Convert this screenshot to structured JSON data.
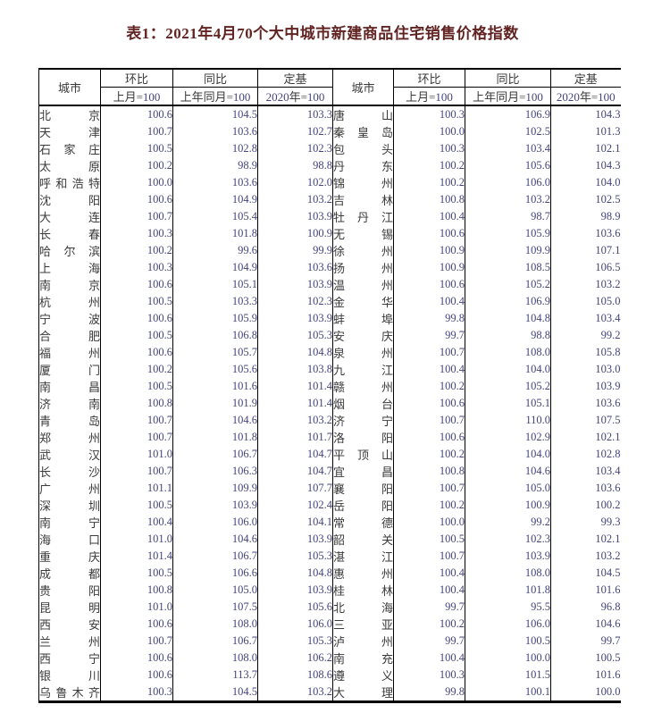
{
  "title": "表1：2021年4月70个大中城市新建商品住宅销售价格指数",
  "header": {
    "city": "城市",
    "mom": "环比",
    "mom_base": "上月=100",
    "yoy": "同比",
    "yoy_base": "上年同月=100",
    "fixed": "定基",
    "fixed_base": "2020年=100"
  },
  "left_rows": [
    {
      "city": "北京",
      "values": [
        "100.6",
        "104.5",
        "103.3"
      ]
    },
    {
      "city": "天津",
      "values": [
        "100.7",
        "103.6",
        "102.7"
      ]
    },
    {
      "city": "石家庄",
      "values": [
        "100.5",
        "102.8",
        "102.3"
      ]
    },
    {
      "city": "太原",
      "values": [
        "100.2",
        "98.9",
        "98.8"
      ]
    },
    {
      "city": "呼和浩特",
      "values": [
        "100.0",
        "103.6",
        "102.0"
      ]
    },
    {
      "city": "沈阳",
      "values": [
        "100.6",
        "104.9",
        "103.2"
      ]
    },
    {
      "city": "大连",
      "values": [
        "100.7",
        "105.4",
        "103.9"
      ]
    },
    {
      "city": "长春",
      "values": [
        "100.3",
        "101.8",
        "100.9"
      ]
    },
    {
      "city": "哈尔滨",
      "values": [
        "100.2",
        "99.6",
        "99.9"
      ]
    },
    {
      "city": "上海",
      "values": [
        "100.3",
        "104.9",
        "103.6"
      ]
    },
    {
      "city": "南京",
      "values": [
        "100.6",
        "105.1",
        "103.9"
      ]
    },
    {
      "city": "杭州",
      "values": [
        "100.5",
        "103.3",
        "102.3"
      ]
    },
    {
      "city": "宁波",
      "values": [
        "100.6",
        "105.9",
        "103.9"
      ]
    },
    {
      "city": "合肥",
      "values": [
        "100.5",
        "106.8",
        "105.3"
      ]
    },
    {
      "city": "福州",
      "values": [
        "100.6",
        "105.7",
        "104.8"
      ]
    },
    {
      "city": "厦门",
      "values": [
        "100.2",
        "105.6",
        "103.8"
      ]
    },
    {
      "city": "南昌",
      "values": [
        "100.5",
        "101.6",
        "101.4"
      ]
    },
    {
      "city": "济南",
      "values": [
        "100.8",
        "101.9",
        "101.4"
      ]
    },
    {
      "city": "青岛",
      "values": [
        "100.7",
        "104.6",
        "103.2"
      ]
    },
    {
      "city": "郑州",
      "values": [
        "100.7",
        "101.8",
        "101.7"
      ]
    },
    {
      "city": "武汉",
      "values": [
        "101.0",
        "106.7",
        "104.7"
      ]
    },
    {
      "city": "长沙",
      "values": [
        "100.7",
        "106.3",
        "104.7"
      ]
    },
    {
      "city": "广州",
      "values": [
        "101.1",
        "109.9",
        "107.7"
      ]
    },
    {
      "city": "深圳",
      "values": [
        "100.5",
        "103.9",
        "102.4"
      ]
    },
    {
      "city": "南宁",
      "values": [
        "100.4",
        "106.0",
        "104.1"
      ]
    },
    {
      "city": "海口",
      "values": [
        "101.0",
        "104.6",
        "103.9"
      ]
    },
    {
      "city": "重庆",
      "values": [
        "101.4",
        "106.7",
        "105.3"
      ]
    },
    {
      "city": "成都",
      "values": [
        "100.5",
        "106.6",
        "104.8"
      ]
    },
    {
      "city": "贵阳",
      "values": [
        "100.8",
        "105.0",
        "103.9"
      ]
    },
    {
      "city": "昆明",
      "values": [
        "101.0",
        "107.5",
        "105.6"
      ]
    },
    {
      "city": "西安",
      "values": [
        "100.6",
        "108.0",
        "106.0"
      ]
    },
    {
      "city": "兰州",
      "values": [
        "100.7",
        "106.7",
        "105.3"
      ]
    },
    {
      "city": "西宁",
      "values": [
        "100.6",
        "108.0",
        "106.2"
      ]
    },
    {
      "city": "银川",
      "values": [
        "100.6",
        "113.7",
        "108.6"
      ]
    },
    {
      "city": "乌鲁木齐",
      "values": [
        "100.3",
        "104.5",
        "103.2"
      ]
    }
  ],
  "right_rows": [
    {
      "city": "唐山",
      "values": [
        "100.3",
        "106.9",
        "104.3"
      ]
    },
    {
      "city": "秦皇岛",
      "values": [
        "100.0",
        "102.5",
        "101.3"
      ]
    },
    {
      "city": "包头",
      "values": [
        "100.3",
        "103.4",
        "102.1"
      ]
    },
    {
      "city": "丹东",
      "values": [
        "100.2",
        "105.6",
        "104.3"
      ]
    },
    {
      "city": "锦州",
      "values": [
        "100.2",
        "106.0",
        "104.0"
      ]
    },
    {
      "city": "吉林",
      "values": [
        "100.8",
        "103.2",
        "102.5"
      ]
    },
    {
      "city": "牡丹江",
      "values": [
        "100.4",
        "98.7",
        "98.9"
      ]
    },
    {
      "city": "无锡",
      "values": [
        "100.6",
        "105.9",
        "103.6"
      ]
    },
    {
      "city": "徐州",
      "values": [
        "100.9",
        "109.9",
        "107.1"
      ]
    },
    {
      "city": "扬州",
      "values": [
        "100.9",
        "108.5",
        "106.5"
      ]
    },
    {
      "city": "温州",
      "values": [
        "100.6",
        "105.2",
        "103.2"
      ]
    },
    {
      "city": "金华",
      "values": [
        "100.4",
        "106.9",
        "105.0"
      ]
    },
    {
      "city": "蚌埠",
      "values": [
        "99.8",
        "104.8",
        "103.4"
      ]
    },
    {
      "city": "安庆",
      "values": [
        "99.7",
        "98.8",
        "99.2"
      ]
    },
    {
      "city": "泉州",
      "values": [
        "100.7",
        "108.0",
        "105.8"
      ]
    },
    {
      "city": "九江",
      "values": [
        "100.4",
        "104.0",
        "103.0"
      ]
    },
    {
      "city": "赣州",
      "values": [
        "100.2",
        "105.2",
        "103.9"
      ]
    },
    {
      "city": "烟台",
      "values": [
        "100.6",
        "105.1",
        "103.6"
      ]
    },
    {
      "city": "济宁",
      "values": [
        "100.7",
        "110.0",
        "107.5"
      ]
    },
    {
      "city": "洛阳",
      "values": [
        "100.6",
        "102.9",
        "102.1"
      ]
    },
    {
      "city": "平顶山",
      "values": [
        "100.2",
        "104.0",
        "102.8"
      ]
    },
    {
      "city": "宜昌",
      "values": [
        "100.8",
        "104.6",
        "103.4"
      ]
    },
    {
      "city": "襄阳",
      "values": [
        "100.7",
        "105.0",
        "103.6"
      ]
    },
    {
      "city": "岳阳",
      "values": [
        "100.2",
        "100.9",
        "100.2"
      ]
    },
    {
      "city": "常德",
      "values": [
        "100.0",
        "99.2",
        "99.3"
      ]
    },
    {
      "city": "韶关",
      "values": [
        "100.5",
        "102.3",
        "102.1"
      ]
    },
    {
      "city": "湛江",
      "values": [
        "100.7",
        "103.9",
        "103.2"
      ]
    },
    {
      "city": "惠州",
      "values": [
        "100.4",
        "108.0",
        "104.5"
      ]
    },
    {
      "city": "桂林",
      "values": [
        "100.4",
        "101.8",
        "101.6"
      ]
    },
    {
      "city": "北海",
      "values": [
        "99.7",
        "95.5",
        "96.8"
      ]
    },
    {
      "city": "三亚",
      "values": [
        "100.2",
        "106.0",
        "104.6"
      ]
    },
    {
      "city": "泸州",
      "values": [
        "99.7",
        "100.5",
        "99.7"
      ]
    },
    {
      "city": "南充",
      "values": [
        "100.4",
        "100.0",
        "100.5"
      ]
    },
    {
      "city": "遵义",
      "values": [
        "100.3",
        "101.5",
        "101.6"
      ]
    },
    {
      "city": "大理",
      "values": [
        "99.8",
        "100.1",
        "100.0"
      ]
    }
  ]
}
